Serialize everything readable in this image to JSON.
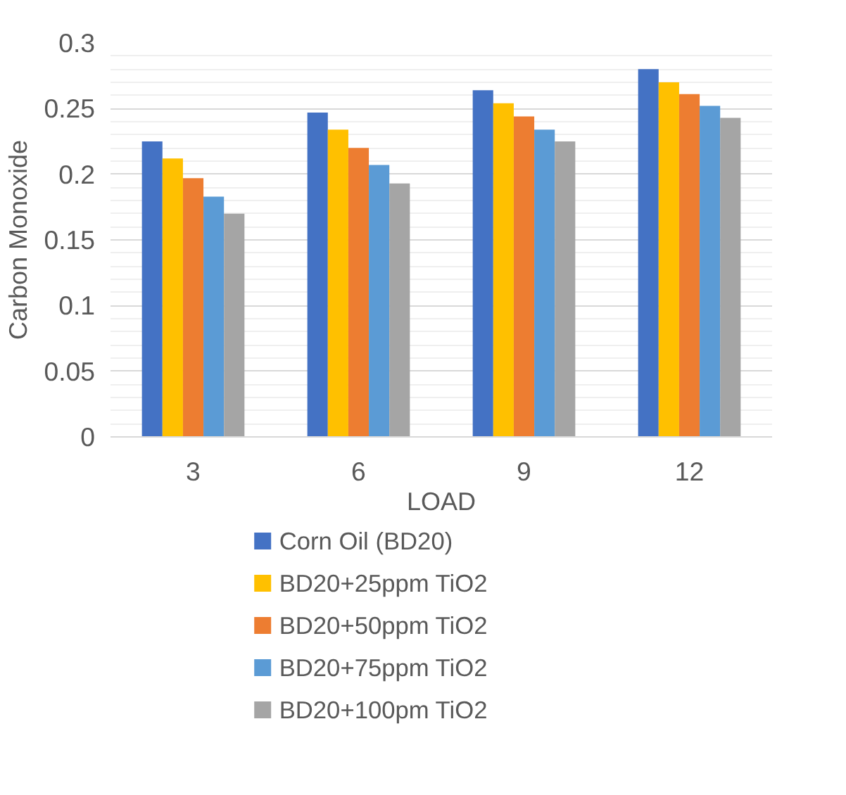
{
  "chart_data": {
    "type": "bar",
    "xlabel": "LOAD",
    "ylabel": "Carbon Monoxide",
    "categories": [
      "3",
      "6",
      "9",
      "12"
    ],
    "series": [
      {
        "name": "Corn Oil (BD20)",
        "color": "#4472c4",
        "values": [
          0.225,
          0.247,
          0.264,
          0.28
        ]
      },
      {
        "name": "BD20+25ppm TiO2",
        "color": "#ffc000",
        "values": [
          0.212,
          0.234,
          0.254,
          0.27
        ]
      },
      {
        "name": "BD20+50ppm TiO2",
        "color": "#ed7d31",
        "values": [
          0.197,
          0.22,
          0.244,
          0.261
        ]
      },
      {
        "name": "BD20+75ppm TiO2",
        "color": "#5b9bd5",
        "values": [
          0.183,
          0.207,
          0.234,
          0.252
        ]
      },
      {
        "name": "BD20+100pm TiO2",
        "color": "#a5a5a5",
        "values": [
          0.17,
          0.193,
          0.225,
          0.243
        ]
      }
    ],
    "ylim": [
      0,
      0.3
    ],
    "yticks": [
      {
        "value": 0,
        "label": "0"
      },
      {
        "value": 0.05,
        "label": "0.05"
      },
      {
        "value": 0.1,
        "label": "0.1"
      },
      {
        "value": 0.15,
        "label": "0.15"
      },
      {
        "value": 0.2,
        "label": "0.2"
      },
      {
        "value": 0.25,
        "label": "0.25"
      },
      {
        "value": 0.3,
        "label": "0.3"
      }
    ],
    "grid": "y",
    "legend": "bottom"
  }
}
